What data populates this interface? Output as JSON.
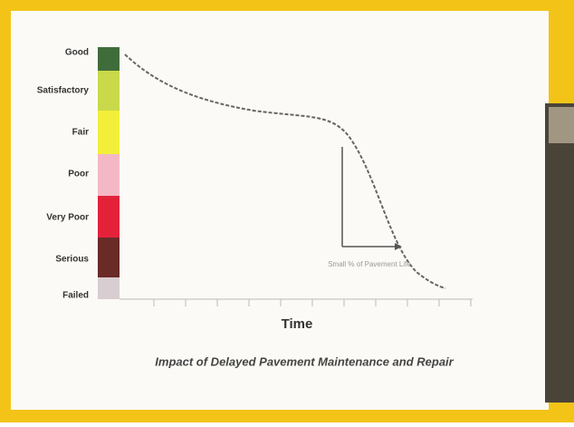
{
  "scale": {
    "levels": [
      "Good",
      "Satisfactory",
      "Fair",
      "Poor",
      "Very Poor",
      "Serious",
      "Failed"
    ]
  },
  "axis": {
    "label": "Time"
  },
  "annotations": [
    "Small % of Pavement Life"
  ],
  "caption": "Impact of Delayed Pavement Maintenance and Repair"
}
